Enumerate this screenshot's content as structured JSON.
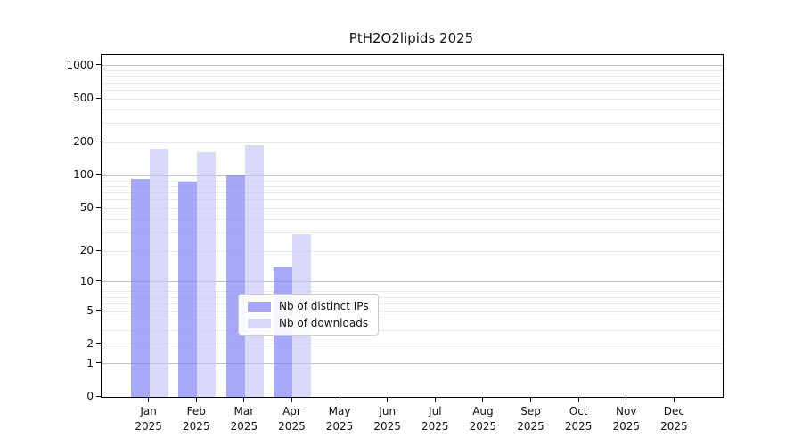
{
  "title": "PtH2O2lipids 2025",
  "chart_data": {
    "type": "bar",
    "title": "PtH2O2lipids 2025",
    "categories": [
      "Jan",
      "Feb",
      "Mar",
      "Apr",
      "May",
      "Jun",
      "Jul",
      "Aug",
      "Sep",
      "Oct",
      "Nov",
      "Dec"
    ],
    "year_label": "2025",
    "series": [
      {
        "name": "Nb of distinct IPs",
        "color": "rgba(123,123,245,0.66)",
        "values": [
          93,
          89,
          101,
          14,
          null,
          null,
          null,
          null,
          null,
          null,
          null,
          null
        ]
      },
      {
        "name": "Nb of downloads",
        "color": "rgba(197,197,246,0.66)",
        "values": [
          176,
          165,
          190,
          29,
          null,
          null,
          null,
          null,
          null,
          null,
          null,
          null
        ]
      }
    ],
    "y_axis": {
      "scale": "log1p",
      "ymin": 0,
      "ymax": 1249,
      "tick_values": [
        0,
        1,
        2,
        5,
        10,
        20,
        50,
        100,
        200,
        500,
        1000
      ],
      "tick_labels": [
        "0",
        "1",
        "2",
        "5",
        "10",
        "20",
        "50",
        "100",
        "200",
        "500",
        "1000"
      ],
      "major_grid_values": [
        1,
        10,
        100,
        1000
      ],
      "minor_grid_values": [
        2,
        3,
        4,
        5,
        6,
        7,
        8,
        9,
        20,
        30,
        40,
        50,
        60,
        70,
        80,
        90,
        200,
        300,
        400,
        500,
        600,
        700,
        800,
        900
      ]
    },
    "x_axis": {
      "tick_count": 12
    },
    "legend": {
      "position": "lower-right-of-center",
      "entries": [
        "Nb of distinct IPs",
        "Nb of downloads"
      ]
    },
    "grid": true
  },
  "colors": {
    "background": "#ffffff",
    "axis_spine": "#000000",
    "major_grid": "#c2c2c2",
    "minor_grid": "#ebebeb",
    "distinct_ips": "rgba(123,123,245,0.66)",
    "downloads": "rgba(197,197,246,0.66)"
  }
}
